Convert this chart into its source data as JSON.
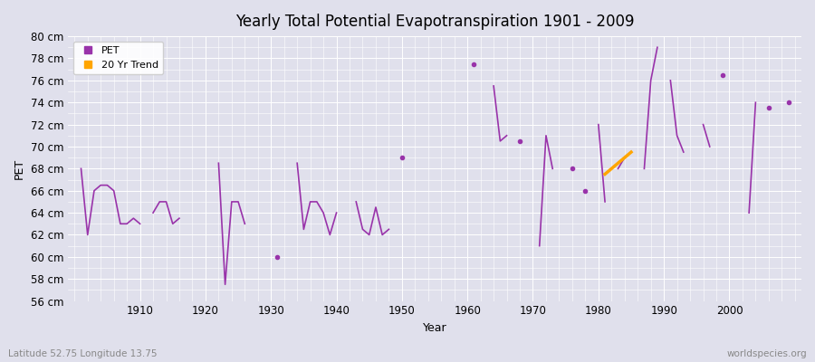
{
  "title": "Yearly Total Potential Evapotranspiration 1901 - 2009",
  "xlabel": "Year",
  "ylabel": "PET",
  "footer_left": "Latitude 52.75 Longitude 13.75",
  "footer_right": "worldspecies.org",
  "ylim": [
    56,
    80
  ],
  "xlim": [
    1899,
    2011
  ],
  "yticks": [
    56,
    58,
    60,
    62,
    64,
    66,
    68,
    70,
    72,
    74,
    76,
    78,
    80
  ],
  "ytick_labels": [
    "56 cm",
    "58 cm",
    "60 cm",
    "62 cm",
    "64 cm",
    "66 cm",
    "68 cm",
    "70 cm",
    "72 cm",
    "74 cm",
    "76 cm",
    "78 cm",
    "80 cm"
  ],
  "xticks": [
    1910,
    1920,
    1930,
    1940,
    1950,
    1960,
    1970,
    1980,
    1990,
    2000
  ],
  "pet_color": "#9933AA",
  "trend_color": "#FFA500",
  "bg_color": "#E0E0EC",
  "grid_color": "#FFFFFF",
  "pet_years": [
    1901,
    1902,
    1903,
    1904,
    1905,
    1906,
    1907,
    1908,
    1909,
    1910,
    1911,
    1912,
    1913,
    1914,
    1915,
    1916,
    1917,
    1918,
    1919,
    1920,
    1921,
    1922,
    1923,
    1924,
    1925,
    1926,
    1927,
    1928,
    1929,
    1930,
    1931,
    1932,
    1933,
    1934,
    1935,
    1936,
    1937,
    1938,
    1939,
    1940,
    1941,
    1942,
    1943,
    1944,
    1945,
    1946,
    1947,
    1948,
    1949,
    1950,
    1951,
    1952,
    1953,
    1954,
    1955,
    1956,
    1957,
    1958,
    1959,
    1960,
    1961,
    1962,
    1963,
    1964,
    1965,
    1966,
    1967,
    1968,
    1969,
    1970,
    1971,
    1972,
    1973,
    1974,
    1975,
    1976,
    1977,
    1978,
    1979,
    1980,
    1981,
    1982,
    1983,
    1984,
    1985,
    1986,
    1987,
    1988,
    1989,
    1990,
    1991,
    1992,
    1993,
    1994,
    1995,
    1996,
    1997,
    1998,
    1999,
    2000,
    2001,
    2002,
    2003,
    2004,
    2005,
    2006,
    2007,
    2008,
    2009
  ],
  "pet_values": [
    68,
    62,
    66,
    66.5,
    66.5,
    66,
    63,
    63,
    63.5,
    63,
    null,
    64,
    65,
    65,
    63,
    63.5,
    null,
    null,
    null,
    null,
    null,
    68.5,
    57.5,
    65,
    65,
    63,
    null,
    null,
    null,
    null,
    60,
    null,
    null,
    68.5,
    62.5,
    65,
    65,
    64,
    62,
    64,
    null,
    null,
    65,
    62.5,
    62,
    64.5,
    62,
    62.5,
    null,
    69,
    null,
    null,
    null,
    null,
    null,
    null,
    null,
    null,
    null,
    null,
    77.5,
    null,
    null,
    75.5,
    70.5,
    71,
    null,
    70.5,
    null,
    null,
    61,
    71,
    68,
    null,
    null,
    68,
    null,
    66,
    null,
    72,
    65,
    null,
    68,
    69,
    null,
    null,
    68,
    76,
    79,
    null,
    76,
    71,
    69.5,
    null,
    null,
    72,
    70,
    null,
    76.5,
    null,
    null,
    null,
    64,
    74,
    null,
    73.5,
    null,
    null,
    74
  ],
  "trend_years": [
    1981,
    1985
  ],
  "trend_values": [
    67.5,
    69.5
  ]
}
